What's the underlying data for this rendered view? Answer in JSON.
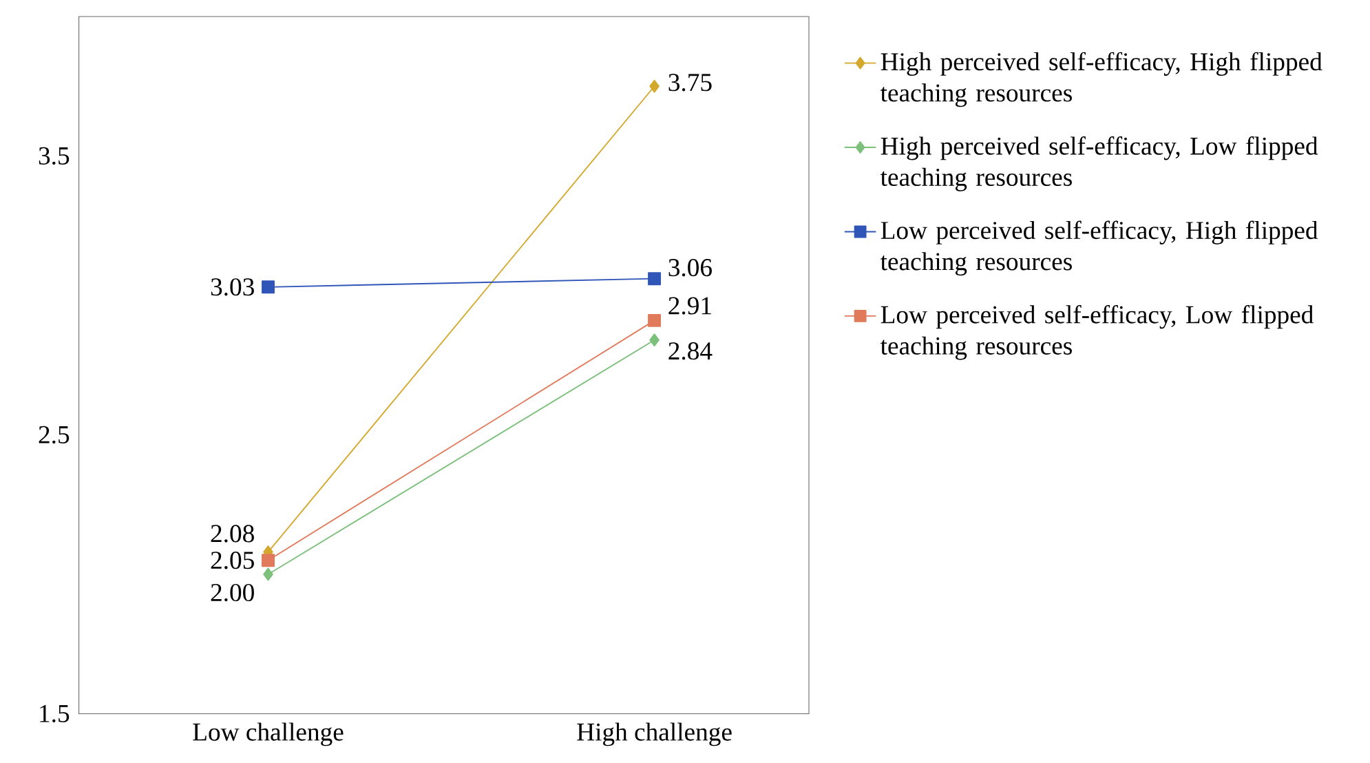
{
  "chart_data": {
    "type": "line",
    "categories": [
      "Low challenge",
      "High challenge"
    ],
    "series": [
      {
        "name": "High perceived self-efficacy, High flipped teaching resources",
        "color": "#d4a82c",
        "marker": "diamond",
        "values": [
          2.08,
          3.75
        ],
        "value_labels": [
          "2.08",
          "3.75"
        ]
      },
      {
        "name": "High perceived self-efficacy, Low flipped teaching resources",
        "color": "#7cc07c",
        "marker": "diamond",
        "values": [
          2.0,
          2.84
        ],
        "value_labels": [
          "2.00",
          "2.84"
        ]
      },
      {
        "name": "Low perceived self-efficacy, High flipped teaching resources",
        "color": "#2f55b8",
        "marker": "square",
        "values": [
          3.03,
          3.06
        ],
        "value_labels": [
          "3.03",
          "3.06"
        ]
      },
      {
        "name": "Low perceived self-efficacy, Low flipped teaching resources",
        "color": "#e07a5a",
        "marker": "square",
        "values": [
          2.05,
          2.91
        ],
        "value_labels": [
          "2.05",
          "2.91"
        ]
      }
    ],
    "ylim": [
      1.5,
      4.0
    ],
    "yticks": [
      1.5,
      2.5,
      3.5
    ],
    "grid": false,
    "legend": "right",
    "line_style": "solid"
  }
}
